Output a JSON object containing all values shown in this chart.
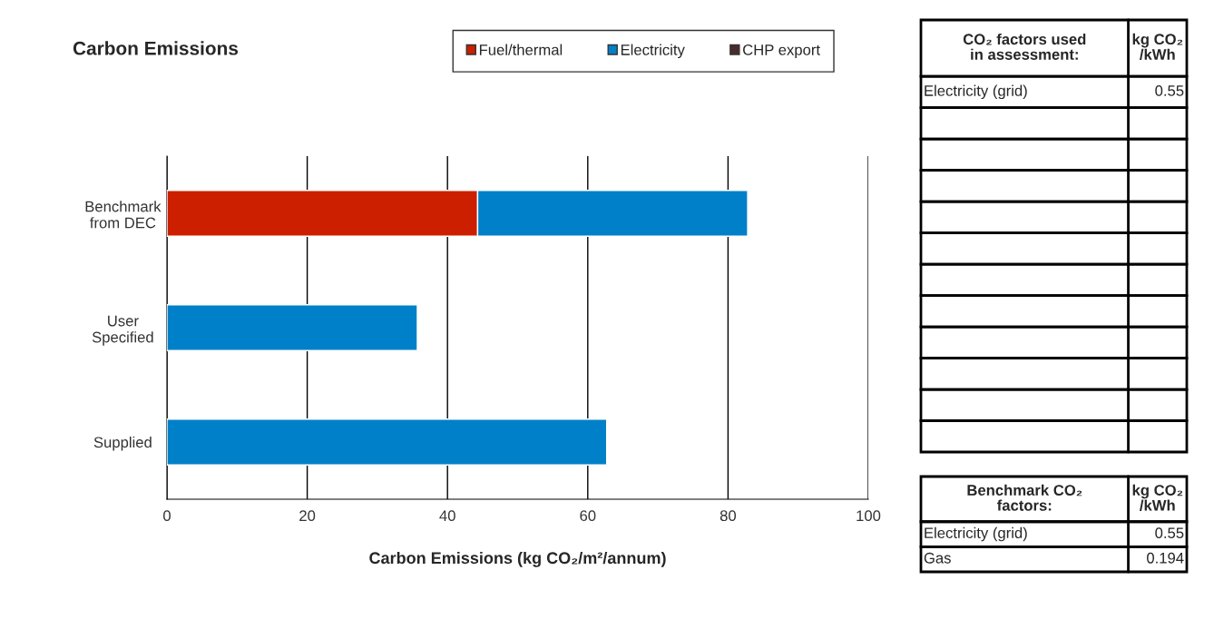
{
  "chart_data": [
    {
      "type": "bar",
      "orientation": "horizontal",
      "stacked": true,
      "title": "Carbon Emissions",
      "xlabel": "Carbon Emissions (kg CO₂/m²/annum)",
      "categories": [
        "Benchmark\nfrom DEC",
        "User\nSpecified",
        "Supplied"
      ],
      "series": [
        {
          "name": "Fuel/thermal",
          "color": "#cc1f00",
          "values": [
            44.3,
            null,
            null
          ]
        },
        {
          "name": "Electricity",
          "color": "#0080c8",
          "values": [
            38.5,
            35.7,
            62.7
          ]
        },
        {
          "name": "CHP export",
          "color": "#4a2c2a",
          "values": [
            null,
            null,
            null
          ]
        }
      ],
      "xlim": [
        0,
        100
      ],
      "xticks": [
        0,
        20,
        40,
        60,
        80,
        100
      ],
      "grid": "x",
      "legend": "top"
    },
    {
      "type": "other",
      "annotations": [
        "CO₂ factors used\nin assessment:",
        "kg CO₂\n/kWh",
        "Electricity (grid)",
        "0.55"
      ]
    },
    {
      "type": "other",
      "annotations": [
        "Benchmark CO₂\nfactors:",
        "kg CO₂\n/kWh",
        "Electricity (grid)",
        "0.55",
        "Gas",
        "0.194"
      ]
    }
  ]
}
